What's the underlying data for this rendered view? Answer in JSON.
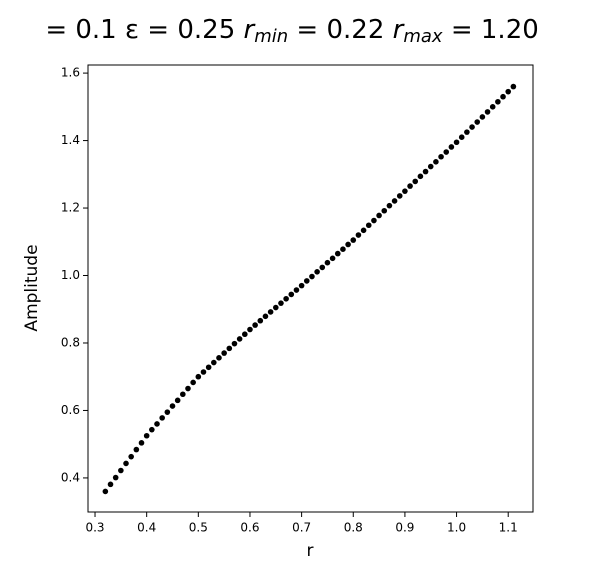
{
  "chart_data": {
    "type": "scatter",
    "title": [
      "= 0.1 ε = 0.25 ",
      "r",
      "min",
      " = 0.22 ",
      "r",
      "max",
      " = 1.20"
    ],
    "x_label": "r",
    "y_label": "Amplitude",
    "color": "#000000",
    "x": [
      0.32,
      0.33,
      0.34,
      0.35,
      0.36,
      0.37,
      0.38,
      0.39,
      0.4,
      0.41,
      0.42,
      0.43,
      0.44,
      0.45,
      0.46,
      0.47,
      0.48,
      0.49,
      0.5,
      0.51,
      0.52,
      0.53,
      0.54,
      0.55,
      0.56,
      0.57,
      0.58,
      0.59,
      0.6,
      0.61,
      0.62,
      0.63,
      0.64,
      0.65,
      0.66,
      0.67,
      0.68,
      0.69,
      0.7,
      0.71,
      0.72,
      0.73,
      0.74,
      0.75,
      0.76,
      0.77,
      0.78,
      0.79,
      0.8,
      0.81,
      0.82,
      0.83,
      0.84,
      0.85,
      0.86,
      0.87,
      0.88,
      0.89,
      0.9,
      0.91,
      0.92,
      0.93,
      0.94,
      0.95,
      0.96,
      0.97,
      0.98,
      0.99,
      1.0,
      1.01,
      1.02,
      1.03,
      1.04,
      1.05,
      1.06,
      1.07,
      1.08,
      1.09,
      1.1,
      1.11
    ],
    "values": [
      0.36,
      0.381,
      0.401,
      0.422,
      0.443,
      0.463,
      0.484,
      0.504,
      0.525,
      0.543,
      0.56,
      0.578,
      0.595,
      0.613,
      0.63,
      0.648,
      0.665,
      0.683,
      0.7,
      0.714,
      0.728,
      0.742,
      0.756,
      0.77,
      0.784,
      0.798,
      0.812,
      0.826,
      0.84,
      0.853,
      0.866,
      0.879,
      0.892,
      0.905,
      0.918,
      0.931,
      0.944,
      0.957,
      0.97,
      0.984,
      0.997,
      1.011,
      1.024,
      1.038,
      1.051,
      1.065,
      1.078,
      1.092,
      1.105,
      1.12,
      1.134,
      1.149,
      1.163,
      1.178,
      1.192,
      1.207,
      1.221,
      1.236,
      1.25,
      1.265,
      1.279,
      1.294,
      1.308,
      1.323,
      1.337,
      1.352,
      1.366,
      1.381,
      1.395,
      1.41,
      1.425,
      1.44,
      1.455,
      1.47,
      1.485,
      1.5,
      1.515,
      1.53,
      1.545,
      1.56
    ],
    "xlim": [
      0.2864,
      1.148
    ],
    "ylim": [
      0.299,
      1.624
    ],
    "xticks": [
      0.3,
      0.4,
      0.5,
      0.6,
      0.7,
      0.8,
      0.9,
      {
        "value": 1,
        "label": "1.0"
      },
      1.1
    ],
    "yticks": [
      0.4,
      0.6,
      0.8,
      {
        "value": 1,
        "label": "1.0"
      },
      1.2,
      1.4,
      1.6
    ]
  }
}
